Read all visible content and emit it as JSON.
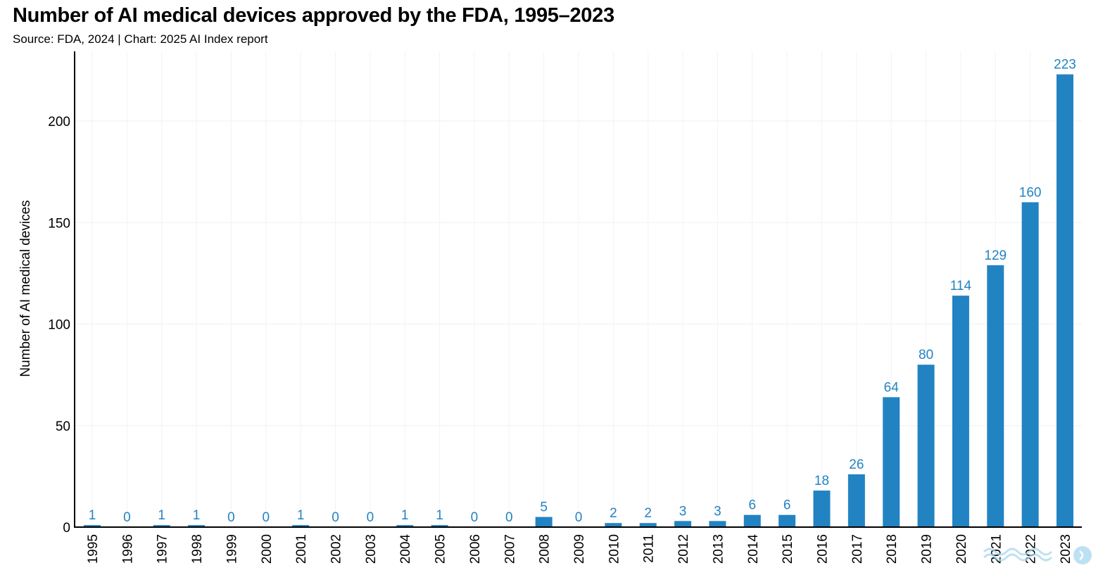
{
  "header": {
    "title": "Number of AI medical devices approved by the FDA, 1995–2023",
    "subtitle": "Source: FDA, 2024 | Chart: 2025 AI Index report"
  },
  "chart_data": {
    "type": "bar",
    "title": "Number of AI medical devices approved by the FDA, 1995–2023",
    "subtitle": "Source: FDA, 2024 | Chart: 2025 AI Index report",
    "xlabel": "",
    "ylabel": "Number of AI medical devices",
    "ylim": [
      0,
      234
    ],
    "yticks": [
      0,
      50,
      100,
      150,
      200
    ],
    "grid": true,
    "legend": "none",
    "bar_color": "#2283c3",
    "label_color": "#2283c3",
    "categories": [
      "1995",
      "1996",
      "1997",
      "1998",
      "1999",
      "2000",
      "2001",
      "2002",
      "2003",
      "2004",
      "2005",
      "2006",
      "2007",
      "2008",
      "2009",
      "2010",
      "2011",
      "2012",
      "2013",
      "2014",
      "2015",
      "2016",
      "2017",
      "2018",
      "2019",
      "2020",
      "2021",
      "2022",
      "2023"
    ],
    "values": [
      1,
      0,
      1,
      1,
      0,
      0,
      1,
      0,
      0,
      1,
      1,
      0,
      0,
      5,
      0,
      2,
      2,
      3,
      3,
      6,
      6,
      18,
      26,
      64,
      80,
      114,
      129,
      160,
      223
    ]
  },
  "watermark": {
    "icon": "logo-watermark-icon"
  }
}
